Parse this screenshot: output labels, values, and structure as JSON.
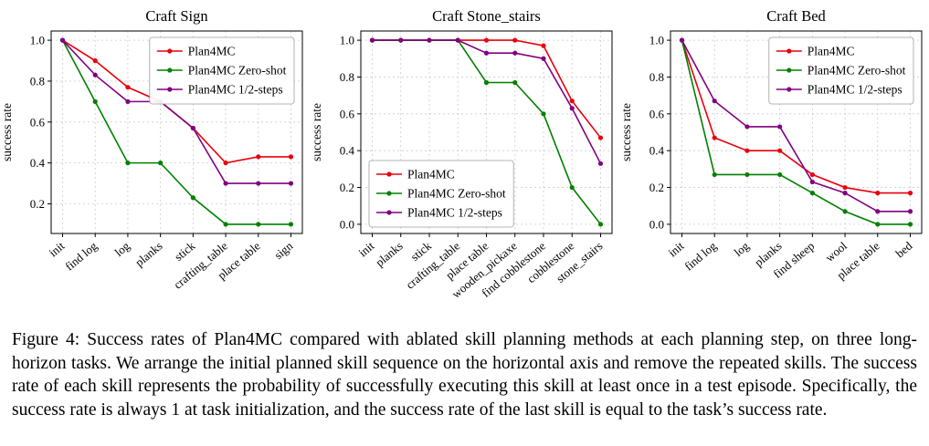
{
  "caption": {
    "label": "Figure 4: ",
    "text": "Success rates of Plan4MC compared with ablated skill planning methods at each planning step, on three long-horizon tasks. We arrange the initial planned skill sequence on the horizontal axis and remove the repeated skills. The success rate of each skill represents the probability of successfully executing this skill at least once in a test episode. Specifically, the success rate is always 1 at task initialization, and the success rate of the last skill is equal to the task’s success rate."
  },
  "chart_data": [
    {
      "type": "line",
      "title": "Craft Sign",
      "ylabel": "success rate",
      "categories": [
        "init",
        "find log",
        "log",
        "planks",
        "stick",
        "crafting_table",
        "place table",
        "sign"
      ],
      "series": [
        {
          "name": "Plan4MC",
          "color": "#e8000b",
          "values": [
            1.0,
            0.9,
            0.77,
            0.7,
            0.57,
            0.4,
            0.43,
            0.43
          ]
        },
        {
          "name": "Plan4MC Zero-shot",
          "color": "#008000",
          "values": [
            1.0,
            0.7,
            0.4,
            0.4,
            0.23,
            0.1,
            0.1,
            0.1
          ]
        },
        {
          "name": "Plan4MC 1/2-steps",
          "color": "#800080",
          "values": [
            1.0,
            0.83,
            0.7,
            0.7,
            0.57,
            0.3,
            0.3,
            0.3
          ]
        }
      ],
      "ylim": [
        0.055,
        1.045
      ],
      "yticks": [
        0.2,
        0.4,
        0.6,
        0.8,
        1.0
      ],
      "legend_pos": "upper right",
      "grid": true
    },
    {
      "type": "line",
      "title": "Craft Stone_stairs",
      "ylabel": "success rate",
      "categories": [
        "init",
        "planks",
        "stick",
        "crafting_table",
        "place table",
        "wooden_pickaxe",
        "find cobblestone",
        "cobblestone",
        "stone_stairs"
      ],
      "series": [
        {
          "name": "Plan4MC",
          "color": "#e8000b",
          "values": [
            1.0,
            1.0,
            1.0,
            1.0,
            1.0,
            1.0,
            0.97,
            0.67,
            0.47
          ]
        },
        {
          "name": "Plan4MC Zero-shot",
          "color": "#008000",
          "values": [
            1.0,
            1.0,
            1.0,
            1.0,
            0.77,
            0.77,
            0.6,
            0.2,
            0.0
          ]
        },
        {
          "name": "Plan4MC 1/2-steps",
          "color": "#800080",
          "values": [
            1.0,
            1.0,
            1.0,
            1.0,
            0.93,
            0.93,
            0.9,
            0.63,
            0.33
          ]
        }
      ],
      "ylim": [
        -0.05,
        1.05
      ],
      "yticks": [
        0.0,
        0.2,
        0.4,
        0.6,
        0.8,
        1.0
      ],
      "legend_pos": "lower left",
      "grid": true
    },
    {
      "type": "line",
      "title": "Craft Bed",
      "ylabel": "success rate",
      "categories": [
        "init",
        "find log",
        "log",
        "planks",
        "find sheep",
        "wool",
        "place table",
        "bed"
      ],
      "series": [
        {
          "name": "Plan4MC",
          "color": "#e8000b",
          "values": [
            1.0,
            0.47,
            0.4,
            0.4,
            0.27,
            0.2,
            0.17,
            0.17
          ]
        },
        {
          "name": "Plan4MC Zero-shot",
          "color": "#008000",
          "values": [
            1.0,
            0.27,
            0.27,
            0.27,
            0.17,
            0.07,
            0.0,
            0.0
          ]
        },
        {
          "name": "Plan4MC 1/2-steps",
          "color": "#800080",
          "values": [
            1.0,
            0.67,
            0.53,
            0.53,
            0.23,
            0.17,
            0.07,
            0.07
          ]
        }
      ],
      "ylim": [
        -0.05,
        1.05
      ],
      "yticks": [
        0.0,
        0.2,
        0.4,
        0.6,
        0.8,
        1.0
      ],
      "legend_pos": "upper right",
      "grid": true
    }
  ]
}
